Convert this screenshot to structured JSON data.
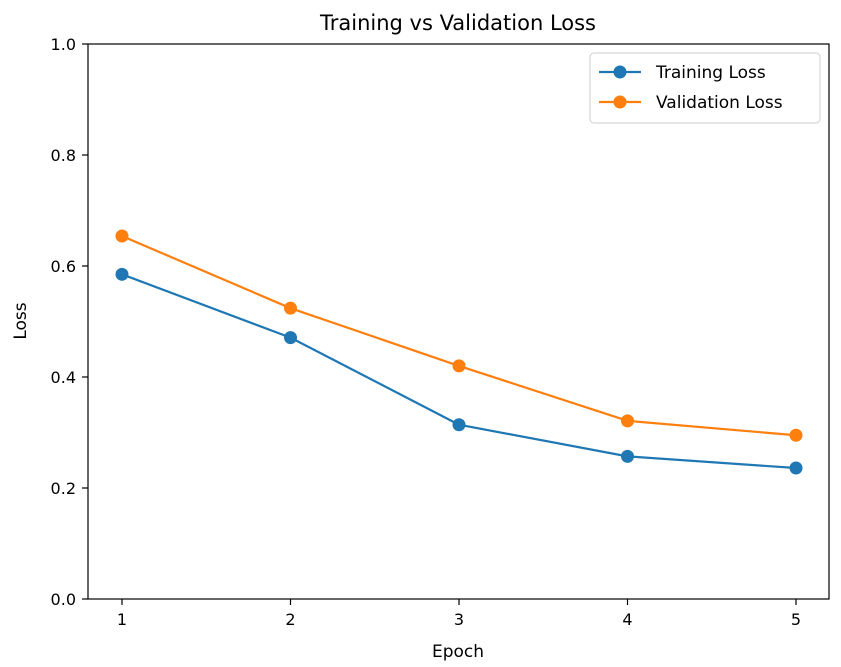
{
  "chart_data": {
    "type": "line",
    "title": "Training vs Validation Loss",
    "xlabel": "Epoch",
    "ylabel": "Loss",
    "x": [
      1,
      2,
      3,
      4,
      5
    ],
    "xticks": [
      "1",
      "2",
      "3",
      "4",
      "5"
    ],
    "ylim": [
      0.0,
      1.0
    ],
    "yticks": [
      "0.0",
      "0.2",
      "0.4",
      "0.6",
      "0.8",
      "1.0"
    ],
    "grid": false,
    "legend_position": "top-right",
    "series": [
      {
        "name": "Training Loss",
        "color": "#1f77b4",
        "marker": "circle",
        "values": [
          0.585,
          0.471,
          0.314,
          0.257,
          0.236
        ]
      },
      {
        "name": "Validation Loss",
        "color": "#ff7f0e",
        "marker": "circle",
        "values": [
          0.654,
          0.524,
          0.42,
          0.321,
          0.295
        ]
      }
    ]
  }
}
